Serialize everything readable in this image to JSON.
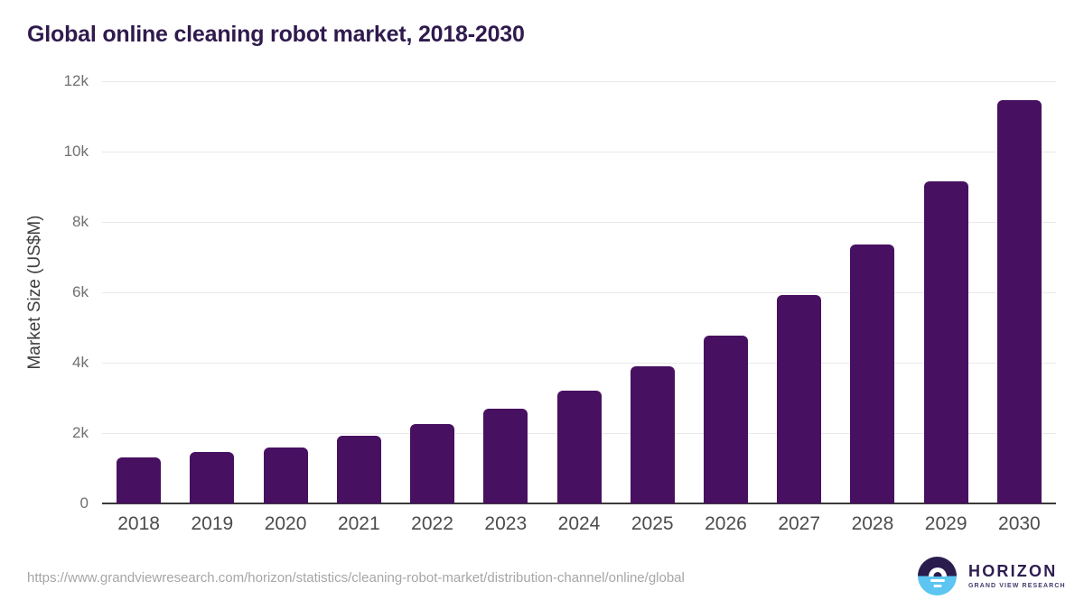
{
  "chart_data": {
    "type": "bar",
    "title": "Global online cleaning robot market, 2018-2030",
    "xlabel": "",
    "ylabel": "Market Size (US$M)",
    "ylim": [
      0,
      12000
    ],
    "grid": true,
    "legend": false,
    "bar_color": "#481060",
    "categories": [
      "2018",
      "2019",
      "2020",
      "2021",
      "2022",
      "2023",
      "2024",
      "2025",
      "2026",
      "2027",
      "2028",
      "2029",
      "2030"
    ],
    "values": [
      1300,
      1450,
      1580,
      1920,
      2250,
      2680,
      3210,
      3890,
      4780,
      5920,
      7360,
      9150,
      11450
    ],
    "yticks": [
      {
        "value": 0,
        "label": "0"
      },
      {
        "value": 2000,
        "label": "2k"
      },
      {
        "value": 4000,
        "label": "4k"
      },
      {
        "value": 6000,
        "label": "6k"
      },
      {
        "value": 8000,
        "label": "8k"
      },
      {
        "value": 10000,
        "label": "10k"
      },
      {
        "value": 12000,
        "label": "12k"
      }
    ]
  },
  "footer": {
    "source_url": "https://www.grandviewresearch.com/horizon/statistics/cleaning-robot-market/distribution-channel/online/global",
    "logo": {
      "name": "HORIZON",
      "tagline": "GRAND VIEW RESEARCH"
    }
  },
  "colors": {
    "title": "#2f1a4d",
    "bar": "#481060",
    "gridline": "#e9e9e9",
    "axis_line": "#3a3a3a",
    "y_tick_text": "#707070",
    "x_tick_text": "#4c4c4c",
    "source_text": "#a6a6a6",
    "logo_dark": "#2b1c4e",
    "logo_blue": "#5cc5f1"
  }
}
